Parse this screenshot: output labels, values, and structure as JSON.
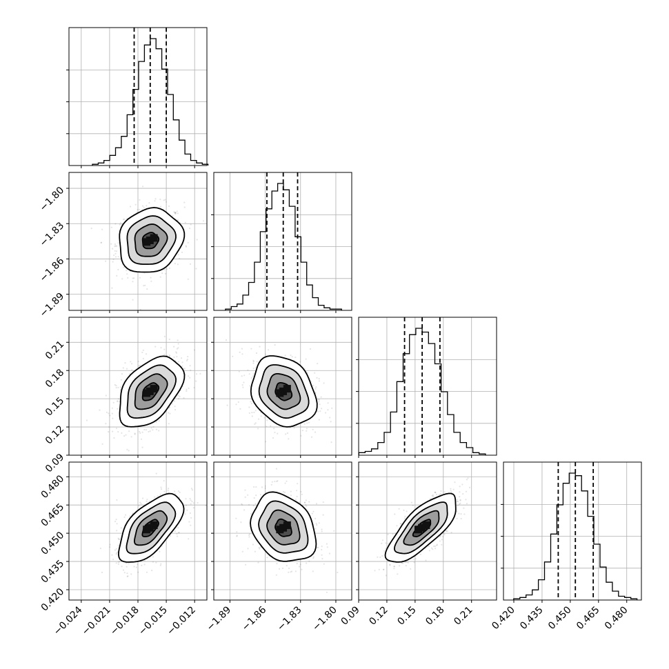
{
  "chart_data": {
    "type": "corner",
    "parameters": [
      {
        "ticks": [
          "−0.024",
          "−0.021",
          "−0.018",
          "−0.015",
          "−0.012"
        ],
        "tick_values": [
          -0.024,
          -0.021,
          -0.018,
          -0.015,
          -0.012
        ],
        "range": [
          -0.0253,
          -0.0107
        ],
        "mean": -0.0167,
        "sd": 0.0017,
        "quantiles": [
          -0.0184,
          -0.0167,
          -0.015
        ],
        "hist_counts": [
          1,
          2,
          4,
          8,
          14,
          23,
          40,
          60,
          82,
          95,
          100,
          92,
          76,
          56,
          36,
          20,
          9,
          4,
          2,
          1
        ]
      },
      {
        "ticks": [
          "−1.89",
          "−1.86",
          "−1.83",
          "−1.80"
        ],
        "tick_values": [
          -1.89,
          -1.86,
          -1.83,
          -1.8
        ],
        "range": [
          -1.9037,
          -1.7865
        ],
        "mean": -1.8445,
        "sd": 0.0137,
        "quantiles": [
          -1.8586,
          -1.8447,
          -1.8325
        ],
        "hist_counts": [
          1,
          3,
          5,
          12,
          22,
          38,
          62,
          80,
          94,
          100,
          95,
          82,
          58,
          38,
          20,
          10,
          4,
          2,
          1,
          1
        ]
      },
      {
        "ticks": [
          "0.09",
          "0.12",
          "0.15",
          "0.18",
          "0.21"
        ],
        "tick_values": [
          0.09,
          0.12,
          0.15,
          0.18,
          0.21
        ],
        "range": [
          0.09,
          0.2366
        ],
        "mean": 0.1575,
        "sd": 0.0187,
        "quantiles": [
          0.1388,
          0.1575,
          0.1764
        ],
        "hist_counts": [
          2,
          3,
          5,
          10,
          18,
          34,
          58,
          80,
          95,
          100,
          97,
          88,
          72,
          50,
          32,
          18,
          10,
          6,
          2,
          1
        ]
      },
      {
        "ticks": [
          "0.420",
          "0.435",
          "0.450",
          "0.465",
          "0.480"
        ],
        "tick_values": [
          0.42,
          0.435,
          0.45,
          0.465,
          0.48
        ],
        "range": [
          0.4145,
          0.4878
        ],
        "mean": 0.4527,
        "sd": 0.0091,
        "quantiles": [
          0.4436,
          0.4527,
          0.4622
        ],
        "hist_counts": [
          1,
          2,
          4,
          8,
          16,
          30,
          52,
          75,
          92,
          100,
          98,
          86,
          66,
          44,
          26,
          14,
          7,
          3,
          2,
          1
        ]
      }
    ],
    "correlations": [
      {
        "pair": [
          0,
          1
        ],
        "r": 0.12
      },
      {
        "pair": [
          0,
          2
        ],
        "r": 0.45
      },
      {
        "pair": [
          0,
          3
        ],
        "r": 0.62
      },
      {
        "pair": [
          1,
          2
        ],
        "r": -0.22
      },
      {
        "pair": [
          1,
          3
        ],
        "r": -0.25
      },
      {
        "pair": [
          2,
          3
        ],
        "r": 0.75
      }
    ],
    "contour_levels_sigma": [
      0.5,
      1.0,
      1.5,
      2.0
    ],
    "grid": true,
    "axis_labels": []
  }
}
